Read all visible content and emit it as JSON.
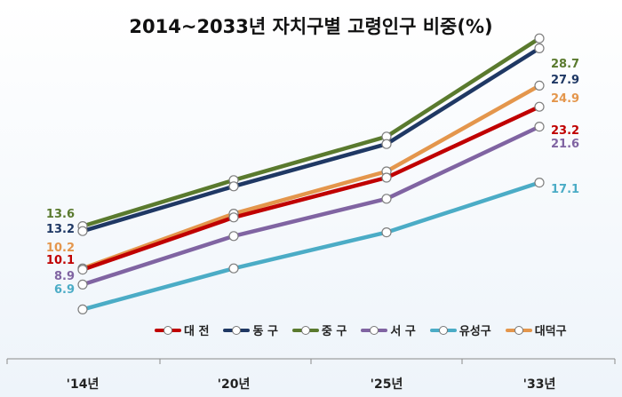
{
  "chart_data": {
    "type": "line",
    "title": "2014~2033년 자치구별 고령인구 비중(%)",
    "categories": [
      "'14년",
      "'20년",
      "'25년",
      "'33년"
    ],
    "series": [
      {
        "name": "대 전",
        "color": "#c00000",
        "values": [
          10.1,
          14.3,
          17.5,
          23.2
        ]
      },
      {
        "name": "동 구",
        "color": "#1f3864",
        "values": [
          13.2,
          16.8,
          20.2,
          27.9
        ]
      },
      {
        "name": "중 구",
        "color": "#5a7a2e",
        "values": [
          13.6,
          17.3,
          20.8,
          28.7
        ]
      },
      {
        "name": "서 구",
        "color": "#8064a2",
        "values": [
          8.9,
          12.8,
          15.8,
          21.6
        ]
      },
      {
        "name": "유성구",
        "color": "#4bacc6",
        "values": [
          6.9,
          10.2,
          13.1,
          17.1
        ]
      },
      {
        "name": "대덕구",
        "color": "#e4964c",
        "values": [
          10.2,
          14.6,
          18.0,
          24.9
        ]
      }
    ],
    "data_labels": {
      "first": [
        "10.1",
        "13.2",
        "13.6",
        "8.9",
        "6.9",
        "10.2"
      ],
      "last": [
        "23.2",
        "27.9",
        "28.7",
        "21.6",
        "17.1",
        "24.9"
      ]
    },
    "xlabel": "",
    "ylabel": "",
    "grid": false,
    "legend_position": "bottom-right"
  }
}
